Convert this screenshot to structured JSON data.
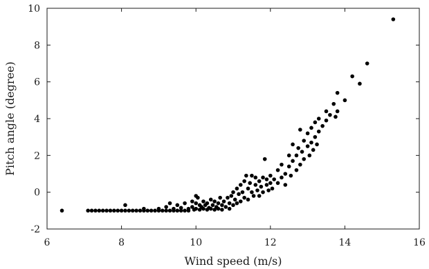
{
  "chart_data": {
    "type": "scatter",
    "title": "",
    "xlabel": "Wind speed (m/s)",
    "ylabel": "Pitch angle (degree)",
    "xlim": [
      6,
      16
    ],
    "ylim": [
      -2,
      10
    ],
    "xticks": [
      6,
      8,
      10,
      12,
      14,
      16
    ],
    "yticks": [
      -2,
      0,
      2,
      4,
      6,
      8,
      10
    ],
    "xtick_labels": [
      "6",
      "8",
      "10",
      "12",
      "14",
      "16"
    ],
    "ytick_labels": [
      "-2",
      "0",
      "2",
      "4",
      "6",
      "8",
      "10"
    ],
    "grid": false,
    "legend": "none",
    "colors": {
      "points": "#000000",
      "axes": "#1a1a1a",
      "background": "#ffffff"
    },
    "series": [
      {
        "points": [
          [
            6.4,
            -1.0
          ],
          [
            7.1,
            -1.0
          ],
          [
            7.2,
            -1.0
          ],
          [
            7.3,
            -1.0
          ],
          [
            7.4,
            -1.0
          ],
          [
            7.5,
            -1.0
          ],
          [
            7.6,
            -1.0
          ],
          [
            7.7,
            -1.0
          ],
          [
            7.8,
            -1.0
          ],
          [
            7.9,
            -1.0
          ],
          [
            8.0,
            -1.0
          ],
          [
            8.1,
            -1.0
          ],
          [
            8.2,
            -1.0
          ],
          [
            8.3,
            -1.0
          ],
          [
            8.4,
            -1.0
          ],
          [
            8.5,
            -1.0
          ],
          [
            8.6,
            -1.0
          ],
          [
            8.7,
            -1.0
          ],
          [
            8.8,
            -1.0
          ],
          [
            8.9,
            -1.0
          ],
          [
            9.0,
            -1.0
          ],
          [
            9.1,
            -1.0
          ],
          [
            9.2,
            -1.0
          ],
          [
            9.3,
            -1.0
          ],
          [
            9.4,
            -1.0
          ],
          [
            9.5,
            -1.0
          ],
          [
            9.6,
            -1.0
          ],
          [
            9.7,
            -1.0
          ],
          [
            9.8,
            -1.0
          ],
          [
            8.1,
            -0.7
          ],
          [
            8.6,
            -0.9
          ],
          [
            9.0,
            -0.9
          ],
          [
            9.2,
            -0.8
          ],
          [
            9.3,
            -0.6
          ],
          [
            9.4,
            -0.9
          ],
          [
            9.5,
            -0.7
          ],
          [
            9.6,
            -0.85
          ],
          [
            9.7,
            -0.6
          ],
          [
            9.8,
            -0.9
          ],
          [
            9.9,
            -0.8
          ],
          [
            9.9,
            -0.5
          ],
          [
            9.95,
            -0.95
          ],
          [
            10.0,
            -0.2
          ],
          [
            10.0,
            -0.6
          ],
          [
            10.0,
            -0.9
          ],
          [
            10.05,
            -0.3
          ],
          [
            10.1,
            -0.7
          ],
          [
            10.1,
            -0.95
          ],
          [
            10.15,
            -0.8
          ],
          [
            10.2,
            -0.5
          ],
          [
            10.2,
            -0.9
          ],
          [
            10.25,
            -0.7
          ],
          [
            10.3,
            -0.95
          ],
          [
            10.3,
            -0.6
          ],
          [
            10.35,
            -0.85
          ],
          [
            10.4,
            -0.4
          ],
          [
            10.4,
            -0.9
          ],
          [
            10.45,
            -0.7
          ],
          [
            10.5,
            -0.5
          ],
          [
            10.5,
            -0.95
          ],
          [
            10.55,
            -0.8
          ],
          [
            10.6,
            -0.6
          ],
          [
            10.6,
            -0.9
          ],
          [
            10.65,
            -0.3
          ],
          [
            10.7,
            -0.7
          ],
          [
            10.7,
            -0.95
          ],
          [
            10.75,
            -0.5
          ],
          [
            10.8,
            -0.8
          ],
          [
            10.85,
            -0.3
          ],
          [
            10.9,
            -0.6
          ],
          [
            10.9,
            -0.9
          ],
          [
            10.95,
            -0.2
          ],
          [
            11.0,
            -0.7
          ],
          [
            11.0,
            0.0
          ],
          [
            11.05,
            -0.4
          ],
          [
            11.1,
            0.2
          ],
          [
            11.1,
            -0.6
          ],
          [
            11.15,
            -0.1
          ],
          [
            11.2,
            0.4
          ],
          [
            11.2,
            -0.5
          ],
          [
            11.25,
            0.0
          ],
          [
            11.3,
            0.6
          ],
          [
            11.3,
            -0.3
          ],
          [
            11.35,
            0.9
          ],
          [
            11.4,
            0.2
          ],
          [
            11.4,
            -0.4
          ],
          [
            11.45,
            0.5
          ],
          [
            11.5,
            0.9
          ],
          [
            11.5,
            0.0
          ],
          [
            11.55,
            -0.2
          ],
          [
            11.6,
            0.4
          ],
          [
            11.6,
            0.8
          ],
          [
            11.65,
            0.1
          ],
          [
            11.7,
            0.6
          ],
          [
            11.7,
            -0.2
          ],
          [
            11.75,
            0.3
          ],
          [
            11.8,
            0.8
          ],
          [
            11.8,
            0.0
          ],
          [
            11.85,
            1.8
          ],
          [
            11.9,
            0.4
          ],
          [
            11.9,
            0.7
          ],
          [
            11.95,
            0.1
          ],
          [
            12.0,
            0.5
          ],
          [
            12.0,
            0.9
          ],
          [
            12.05,
            0.2
          ],
          [
            12.1,
            0.7
          ],
          [
            12.2,
            1.2
          ],
          [
            12.2,
            0.5
          ],
          [
            12.3,
            0.8
          ],
          [
            12.3,
            1.5
          ],
          [
            12.4,
            1.0
          ],
          [
            12.4,
            0.4
          ],
          [
            12.5,
            1.4
          ],
          [
            12.5,
            2.0
          ],
          [
            12.55,
            0.9
          ],
          [
            12.6,
            1.7
          ],
          [
            12.6,
            2.6
          ],
          [
            12.7,
            1.2
          ],
          [
            12.7,
            2.0
          ],
          [
            12.75,
            2.4
          ],
          [
            12.8,
            1.5
          ],
          [
            12.8,
            3.4
          ],
          [
            12.85,
            2.2
          ],
          [
            12.9,
            2.8
          ],
          [
            12.9,
            1.8
          ],
          [
            13.0,
            2.5
          ],
          [
            13.0,
            3.2
          ],
          [
            13.05,
            2.0
          ],
          [
            13.1,
            2.7
          ],
          [
            13.1,
            3.5
          ],
          [
            13.15,
            2.3
          ],
          [
            13.2,
            3.0
          ],
          [
            13.2,
            3.8
          ],
          [
            13.25,
            2.6
          ],
          [
            13.3,
            3.3
          ],
          [
            13.3,
            4.0
          ],
          [
            13.4,
            3.6
          ],
          [
            13.5,
            4.4
          ],
          [
            13.5,
            3.9
          ],
          [
            13.6,
            4.2
          ],
          [
            13.7,
            4.8
          ],
          [
            13.75,
            4.1
          ],
          [
            13.8,
            5.4
          ],
          [
            13.8,
            4.4
          ],
          [
            14.0,
            5.0
          ],
          [
            14.2,
            6.3
          ],
          [
            14.4,
            5.9
          ],
          [
            14.6,
            7.0
          ],
          [
            15.3,
            9.4
          ]
        ]
      }
    ]
  }
}
